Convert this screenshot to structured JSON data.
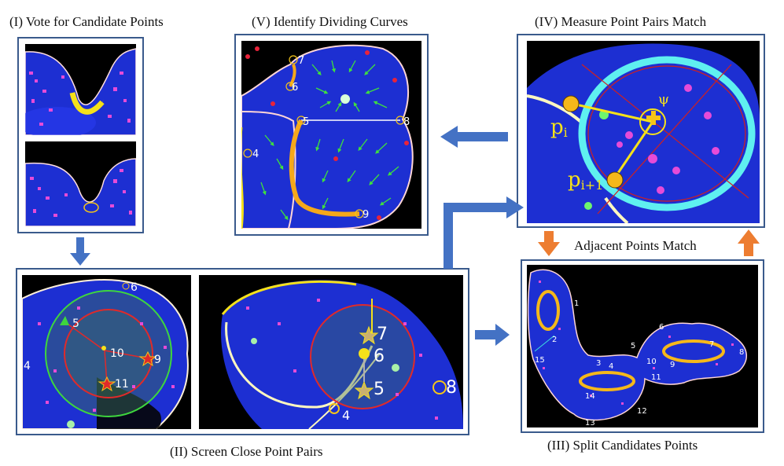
{
  "titles": {
    "p1": "(I) Vote for Candidate Points",
    "p5": "(V) Identify Dividing Curves",
    "p4": "(IV) Measure Point Pairs Match",
    "p2": "(II) Screen Close Point Pairs",
    "p3": "(III) Split Candidates Points",
    "adjacent": "Adjacent Points Match"
  },
  "p5_labels": [
    "7",
    "6",
    "5",
    "8",
    "4",
    "9"
  ],
  "p4_labels": {
    "pi": "p",
    "pi_sub": "i",
    "pi1": "p",
    "pi1_sub": "i+1",
    "psi": "ψ"
  },
  "p2a_labels": [
    "6",
    "5",
    "10",
    "9",
    "11",
    "4"
  ],
  "p2b_labels": [
    "7",
    "6",
    "5",
    "8",
    "4"
  ],
  "p3_labels": [
    "1",
    "2",
    "15",
    "3",
    "4",
    "14",
    "13",
    "12",
    "11",
    "10",
    "9",
    "5",
    "6",
    "7",
    "8"
  ],
  "colors": {
    "frame": "#3a5a8c",
    "arrow_blue": "#4472c4",
    "arrow_orange": "#ed7d31",
    "cell": "#1a2fd8",
    "highlight": "#f5c518"
  }
}
